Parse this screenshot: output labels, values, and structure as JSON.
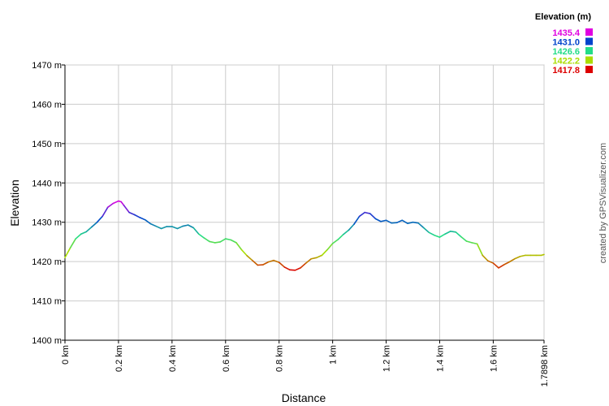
{
  "chart_data": {
    "type": "line",
    "xlabel": "Distance",
    "ylabel": "Elevation",
    "xlim": [
      0,
      1.7898
    ],
    "ylim": [
      1400,
      1470
    ],
    "x_tick_labels": [
      "0 km",
      "0.2 km",
      "0.4 km",
      "0.6 km",
      "0.8 km",
      "1 km",
      "1.2 km",
      "1.4 km",
      "1.6 km",
      "1.7898 km"
    ],
    "x_tick_values": [
      0,
      0.2,
      0.4,
      0.6,
      0.8,
      1.0,
      1.2,
      1.4,
      1.6,
      1.7898
    ],
    "y_tick_labels": [
      "1470 m",
      "1460 m",
      "1450 m",
      "1440 m",
      "1430 m",
      "1420 m",
      "1410 m",
      "1400 m"
    ],
    "y_tick_values": [
      1470,
      1460,
      1450,
      1440,
      1430,
      1420,
      1410,
      1400
    ],
    "grid": true,
    "legend": {
      "title": "Elevation (m)",
      "placement": "top-right",
      "entries": [
        {
          "label": "1435.4",
          "color": "#e000e0"
        },
        {
          "label": "1431.0",
          "color": "#0044cc"
        },
        {
          "label": "1426.6",
          "color": "#22dd88"
        },
        {
          "label": "1422.2",
          "color": "#aadd00"
        },
        {
          "label": "1417.8",
          "color": "#dd0000"
        }
      ]
    },
    "series": [
      {
        "x": [
          0,
          0.02,
          0.04,
          0.06,
          0.08,
          0.1,
          0.12,
          0.14,
          0.16,
          0.18,
          0.2,
          0.21,
          0.22,
          0.24,
          0.26,
          0.28,
          0.3,
          0.32,
          0.34,
          0.36,
          0.38,
          0.4,
          0.42,
          0.44,
          0.46,
          0.48,
          0.5,
          0.52,
          0.54,
          0.56,
          0.58,
          0.6,
          0.62,
          0.64,
          0.66,
          0.68,
          0.7,
          0.72,
          0.74,
          0.76,
          0.78,
          0.8,
          0.82,
          0.84,
          0.86,
          0.88,
          0.9,
          0.92,
          0.94,
          0.96,
          0.98,
          1.0,
          1.02,
          1.04,
          1.06,
          1.08,
          1.1,
          1.12,
          1.14,
          1.16,
          1.18,
          1.2,
          1.22,
          1.24,
          1.26,
          1.28,
          1.3,
          1.32,
          1.34,
          1.36,
          1.38,
          1.4,
          1.42,
          1.44,
          1.46,
          1.48,
          1.5,
          1.52,
          1.54,
          1.56,
          1.58,
          1.6,
          1.62,
          1.64,
          1.66,
          1.68,
          1.7,
          1.72,
          1.74,
          1.76,
          1.78,
          1.7898
        ],
        "y": [
          1421.0,
          1423.5,
          1425.8,
          1427.0,
          1427.6,
          1428.8,
          1430.0,
          1431.5,
          1433.8,
          1434.8,
          1435.4,
          1435.2,
          1434.3,
          1432.5,
          1431.9,
          1431.2,
          1430.6,
          1429.6,
          1429.0,
          1428.4,
          1428.9,
          1428.9,
          1428.4,
          1429.0,
          1429.3,
          1428.6,
          1427.0,
          1426.0,
          1425.1,
          1424.8,
          1425.0,
          1425.8,
          1425.5,
          1424.8,
          1423.0,
          1421.5,
          1420.3,
          1419.1,
          1419.2,
          1419.9,
          1420.3,
          1419.8,
          1418.6,
          1417.9,
          1417.8,
          1418.4,
          1419.6,
          1420.7,
          1421.0,
          1421.6,
          1423.0,
          1424.6,
          1425.6,
          1426.9,
          1428.0,
          1429.5,
          1431.5,
          1432.5,
          1432.2,
          1430.9,
          1430.2,
          1430.5,
          1429.8,
          1429.9,
          1430.5,
          1429.7,
          1430.0,
          1429.8,
          1428.6,
          1427.4,
          1426.7,
          1426.2,
          1427.0,
          1427.7,
          1427.5,
          1426.3,
          1425.2,
          1424.8,
          1424.5,
          1421.6,
          1420.2,
          1419.6,
          1418.4,
          1419.2,
          1419.9,
          1420.7,
          1421.3,
          1421.6,
          1421.6,
          1421.6,
          1421.6,
          1421.8
        ]
      }
    ]
  },
  "credit": "created by GPSVisualizer.com"
}
